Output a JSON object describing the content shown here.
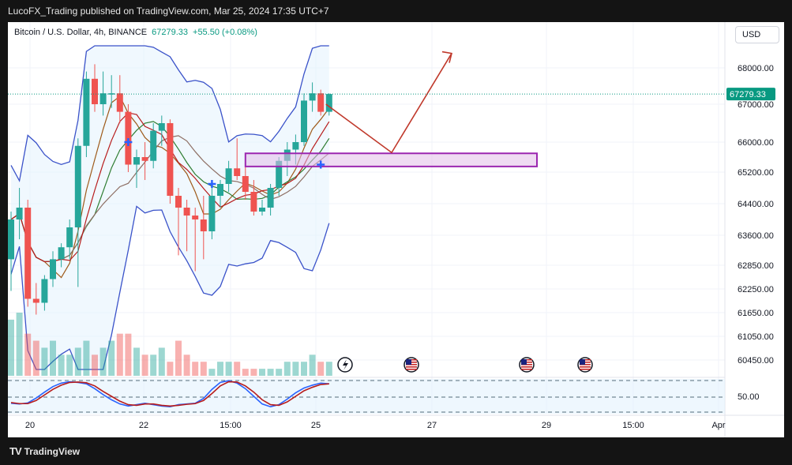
{
  "header": {
    "published": "LucoFX_Trading published on TradingView.com, Mar 25, 2024 17:35 UTC+7"
  },
  "legend": {
    "symbol": "Bitcoin / U.S. Dollar, 4h, BINANCE",
    "price": "67279.33",
    "change": "+55.50 (+0.08%)"
  },
  "currency_button": "USD",
  "brand": {
    "logo": "TV",
    "name": "TradingView"
  },
  "colors": {
    "up": "#26a69a",
    "down": "#ef5350",
    "band": "#3a52c9",
    "zone": "#9c27b0",
    "arrow": "#c0392b",
    "last_price": "#089981",
    "osc_fast": "#2962ff",
    "osc_slow": "#b71c1c"
  },
  "chart_data": {
    "type": "candlestick",
    "timeframe": "4h",
    "x_ticks": [
      "20",
      "22",
      "15:00",
      "25",
      "27",
      "29",
      "15:00",
      "Apr"
    ],
    "y_ticks": [
      68000,
      67000,
      66000,
      65200,
      64400,
      63600,
      62850,
      62250,
      61650,
      61050,
      60450
    ],
    "y_tick_labels": [
      "68000.00",
      "67000.00",
      "66000.00",
      "65200.00",
      "64400.00",
      "63600.00",
      "62850.00",
      "62250.00",
      "61650.00",
      "61050.00",
      "60450.00"
    ],
    "last_price": 67279.33,
    "last_price_label": "67279.33",
    "candles": [
      {
        "o": 63000,
        "h": 64200,
        "l": 62200,
        "c": 64000
      },
      {
        "o": 64000,
        "h": 64800,
        "l": 63500,
        "c": 64300
      },
      {
        "o": 64300,
        "h": 64500,
        "l": 61800,
        "c": 62000
      },
      {
        "o": 62000,
        "h": 62400,
        "l": 61600,
        "c": 61900
      },
      {
        "o": 61900,
        "h": 62600,
        "l": 61700,
        "c": 62500
      },
      {
        "o": 62500,
        "h": 63200,
        "l": 62300,
        "c": 63000
      },
      {
        "o": 63000,
        "h": 63400,
        "l": 62800,
        "c": 63300
      },
      {
        "o": 63300,
        "h": 64000,
        "l": 63000,
        "c": 63800
      },
      {
        "o": 63800,
        "h": 66100,
        "l": 62300,
        "c": 65900
      },
      {
        "o": 65900,
        "h": 67900,
        "l": 65600,
        "c": 67700
      },
      {
        "o": 67700,
        "h": 68100,
        "l": 66800,
        "c": 67000
      },
      {
        "o": 67000,
        "h": 67900,
        "l": 66700,
        "c": 67300
      },
      {
        "o": 67300,
        "h": 67800,
        "l": 66900,
        "c": 67300
      },
      {
        "o": 67300,
        "h": 67800,
        "l": 66500,
        "c": 66800
      },
      {
        "o": 66800,
        "h": 67000,
        "l": 65200,
        "c": 65400
      },
      {
        "o": 65400,
        "h": 65800,
        "l": 64800,
        "c": 65600
      },
      {
        "o": 65600,
        "h": 66000,
        "l": 65000,
        "c": 65500
      },
      {
        "o": 65500,
        "h": 66500,
        "l": 65300,
        "c": 66300
      },
      {
        "o": 66300,
        "h": 66700,
        "l": 65900,
        "c": 66500
      },
      {
        "o": 66500,
        "h": 66600,
        "l": 64400,
        "c": 64600
      },
      {
        "o": 64600,
        "h": 64800,
        "l": 63100,
        "c": 64300
      },
      {
        "o": 64300,
        "h": 64500,
        "l": 63200,
        "c": 64100
      },
      {
        "o": 64100,
        "h": 64300,
        "l": 62700,
        "c": 64000
      },
      {
        "o": 64000,
        "h": 64600,
        "l": 63000,
        "c": 63700
      },
      {
        "o": 63700,
        "h": 64800,
        "l": 63500,
        "c": 64600
      },
      {
        "o": 64600,
        "h": 65000,
        "l": 64300,
        "c": 64900
      },
      {
        "o": 64900,
        "h": 65500,
        "l": 64700,
        "c": 65300
      },
      {
        "o": 65300,
        "h": 66100,
        "l": 65000,
        "c": 65100
      },
      {
        "o": 65100,
        "h": 65700,
        "l": 64500,
        "c": 64700
      },
      {
        "o": 64700,
        "h": 65000,
        "l": 64100,
        "c": 64200
      },
      {
        "o": 64200,
        "h": 64500,
        "l": 64100,
        "c": 64300
      },
      {
        "o": 64300,
        "h": 64900,
        "l": 64100,
        "c": 64800
      },
      {
        "o": 64800,
        "h": 65600,
        "l": 64600,
        "c": 65500
      },
      {
        "o": 65500,
        "h": 66000,
        "l": 65100,
        "c": 65800
      },
      {
        "o": 65800,
        "h": 66200,
        "l": 65400,
        "c": 66000
      },
      {
        "o": 66000,
        "h": 67300,
        "l": 65900,
        "c": 67100
      },
      {
        "o": 67100,
        "h": 67600,
        "l": 66800,
        "c": 67300
      },
      {
        "o": 67300,
        "h": 67400,
        "l": 66700,
        "c": 66800
      },
      {
        "o": 66800,
        "h": 67300,
        "l": 66700,
        "c": 67280
      }
    ],
    "volume": [
      8,
      9,
      6,
      5,
      4,
      5,
      3,
      3,
      4,
      5,
      3,
      4,
      5,
      6,
      6,
      4,
      3,
      3,
      4,
      2,
      5,
      3,
      2,
      2,
      1,
      2,
      2,
      2,
      1,
      1,
      1,
      1,
      1,
      2,
      2,
      2,
      3,
      2,
      2
    ],
    "overlays": [
      "bollinger-bands",
      "moving-averages"
    ],
    "annotations": [
      "demand-zone",
      "projection-arrow"
    ],
    "event_markers": [
      "flash",
      "us-flag",
      "us-flag",
      "us-flag"
    ],
    "oscillator": {
      "y_ticks": [
        50
      ],
      "y_tick_labels": [
        "50.00"
      ],
      "fast": [
        30,
        28,
        31,
        45,
        62,
        78,
        88,
        92,
        90,
        86,
        72,
        55,
        40,
        28,
        22,
        26,
        30,
        26,
        22,
        20,
        26,
        28,
        30,
        44,
        70,
        90,
        95,
        88,
        72,
        50,
        28,
        20,
        26,
        42,
        60,
        74,
        82,
        88,
        86
      ],
      "slow": [
        32,
        29,
        29,
        38,
        54,
        70,
        82,
        90,
        91,
        89,
        80,
        64,
        50,
        36,
        26,
        24,
        28,
        28,
        24,
        22,
        24,
        27,
        29,
        38,
        58,
        80,
        92,
        91,
        80,
        62,
        40,
        26,
        24,
        34,
        50,
        66,
        76,
        84,
        86
      ]
    }
  }
}
